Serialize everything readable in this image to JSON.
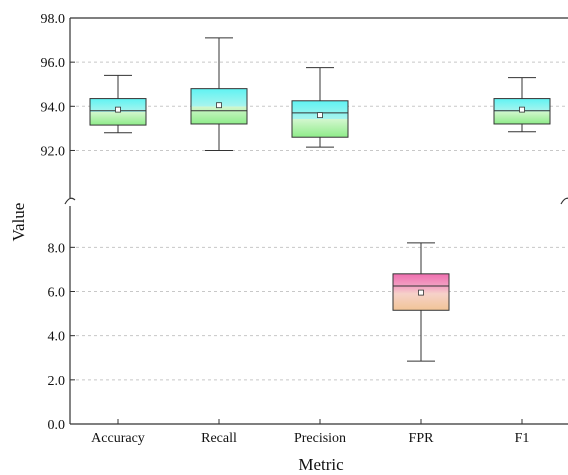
{
  "chart_data": {
    "type": "box",
    "xlabel": "Metric",
    "ylabel": "Value",
    "categories": [
      "Accuracy",
      "Recall",
      "Precision",
      "FPR",
      "F1"
    ],
    "y_axis": {
      "broken": true,
      "segments": [
        {
          "range": [
            90.3,
            98.0
          ],
          "ticks": [
            "92.0",
            "94.0",
            "96.0",
            "98.0"
          ]
        },
        {
          "range": [
            0.0,
            9.6
          ],
          "ticks": [
            "0.0",
            "2.0",
            "4.0",
            "6.0",
            "8.0"
          ]
        }
      ]
    },
    "grid": "horizontal-dashed",
    "boxes": [
      {
        "category": "Accuracy",
        "segment": 0,
        "min": 92.8,
        "q1": 93.15,
        "median": 93.8,
        "q3": 94.35,
        "max": 95.4,
        "mean": 93.85,
        "fill": "cyan-green"
      },
      {
        "category": "Recall",
        "segment": 0,
        "min": 92.0,
        "q1": 93.2,
        "median": 93.8,
        "q3": 94.8,
        "max": 97.1,
        "mean": 94.05,
        "fill": "cyan-green"
      },
      {
        "category": "Precision",
        "segment": 0,
        "min": 92.15,
        "q1": 92.6,
        "median": 93.7,
        "q3": 94.25,
        "max": 95.75,
        "mean": 93.6,
        "fill": "cyan-green"
      },
      {
        "category": "FPR",
        "segment": 1,
        "min": 2.85,
        "q1": 5.15,
        "median": 6.25,
        "q3": 6.8,
        "max": 8.2,
        "mean": 5.95,
        "fill": "pink-yellow"
      },
      {
        "category": "F1",
        "segment": 0,
        "min": 92.85,
        "q1": 93.2,
        "median": 93.8,
        "q3": 94.35,
        "max": 95.3,
        "mean": 93.85,
        "fill": "cyan-green"
      }
    ],
    "colors": {
      "box_top_a": "#5ff3f3",
      "box_top_b": "#9ff6ee",
      "box_bottom_a": "#c9f7c3",
      "box_bottom_b": "#9cef95",
      "fpr_top": "#ef6fb0",
      "fpr_mid": "#f4b6cc",
      "fpr_low": "#f7dcbc",
      "fpr_bottom": "#f1c79e",
      "line": "#333333",
      "grid": "#c8c8c8"
    }
  }
}
